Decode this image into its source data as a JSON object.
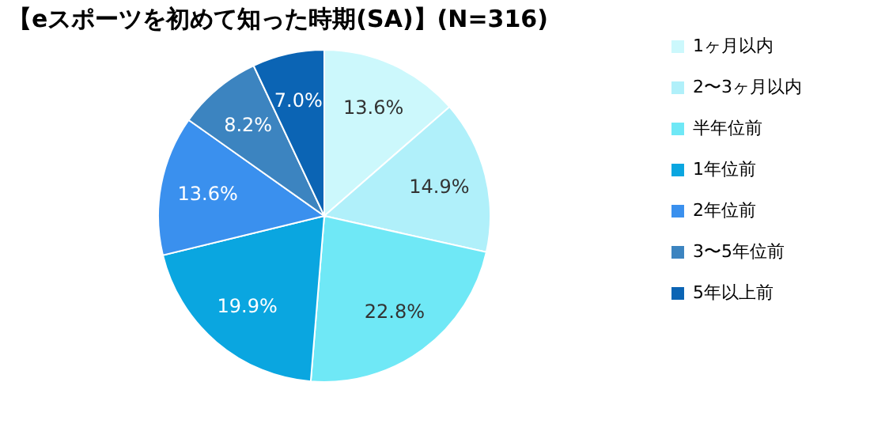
{
  "chart_data": {
    "type": "pie",
    "title": "【eスポーツを初めて知った時期(SA)】(N=316)",
    "categories": [
      "1ヶ月以内",
      "2〜3ヶ月以内",
      "半年位前",
      "1年位前",
      "2年位前",
      "3〜5年位前",
      "5年以上前"
    ],
    "values": [
      13.6,
      14.9,
      22.8,
      19.9,
      13.6,
      8.2,
      7.0
    ],
    "colors": [
      "#ccf8fc",
      "#b0f0fa",
      "#6fe8f6",
      "#0aa6e0",
      "#3a90ee",
      "#3c84c0",
      "#0b64b4"
    ],
    "value_labels": [
      "13.6%",
      "14.9%",
      "22.8%",
      "19.9%",
      "13.6%",
      "8.2%",
      "7.0%"
    ],
    "legend": "right"
  }
}
